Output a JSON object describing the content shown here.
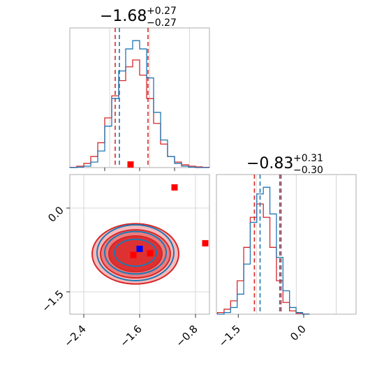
{
  "chart_data": [
    {
      "type": "histogram",
      "panel": "top-left",
      "title": {
        "main": "−1.68",
        "sup": "+0.27",
        "sub": "−0.27"
      },
      "xlim": [
        -2.6,
        -0.6
      ],
      "grid": true,
      "series": [
        {
          "name": "",
          "color": "#d62728",
          "quantiles": [
            -1.95,
            -1.48
          ],
          "centers": [
            -2.55,
            -2.45,
            -2.35,
            -2.25,
            -2.15,
            -2.05,
            -1.95,
            -1.85,
            -1.75,
            -1.65,
            -1.55,
            -1.45,
            -1.35,
            -1.25,
            -1.15,
            -1.05,
            -0.95,
            -0.85,
            -0.75,
            -0.65
          ],
          "counts": [
            0.2,
            1,
            3,
            8,
            18,
            36,
            52,
            63,
            73,
            78,
            67,
            50,
            32,
            17,
            8,
            4,
            2,
            1,
            0.5,
            0.2
          ]
        },
        {
          "name": "",
          "color": "#1f77b4",
          "quantiles": [
            -1.89
          ],
          "centers": [
            -2.55,
            -2.45,
            -2.35,
            -2.25,
            -2.15,
            -2.05,
            -1.95,
            -1.85,
            -1.75,
            -1.65,
            -1.55,
            -1.45,
            -1.35,
            -1.25,
            -1.15,
            -1.05,
            -0.95,
            -0.85,
            -0.75,
            -0.65
          ],
          "counts": [
            0,
            0.3,
            1,
            4,
            12,
            30,
            50,
            70,
            86,
            92,
            86,
            65,
            40,
            20,
            8,
            3,
            1,
            0.3,
            0,
            0
          ]
        }
      ]
    },
    {
      "type": "histogram",
      "panel": "bottom-right",
      "title": {
        "main": "−0.83",
        "sup": "+0.31",
        "sub": "−0.30"
      },
      "xlim": [
        -2.0,
        1.2
      ],
      "grid": true,
      "xticks": [
        "−1.5",
        "0.0"
      ],
      "series": [
        {
          "name": "",
          "color": "#d62728",
          "quantiles": [
            -1.13,
            -0.52
          ],
          "centers": [
            -1.9,
            -1.75,
            -1.6,
            -1.45,
            -1.3,
            -1.15,
            -1.0,
            -0.85,
            -0.7,
            -0.55,
            -0.4,
            -0.25,
            -0.1,
            0.05
          ],
          "counts": [
            1,
            3,
            8,
            20,
            40,
            58,
            66,
            58,
            40,
            20,
            7,
            2,
            0.5,
            0.1
          ]
        },
        {
          "name": "",
          "color": "#1f77b4",
          "quantiles": [
            -1.0,
            -0.55
          ],
          "centers": [
            -1.9,
            -1.75,
            -1.6,
            -1.45,
            -1.3,
            -1.15,
            -1.0,
            -0.85,
            -0.7,
            -0.55,
            -0.4,
            -0.25,
            -0.1,
            0.05
          ],
          "counts": [
            0,
            1,
            4,
            12,
            30,
            55,
            72,
            76,
            60,
            34,
            14,
            4,
            1,
            0
          ]
        }
      ]
    },
    {
      "type": "scatter",
      "panel": "bottom-left",
      "xlim": [
        -2.6,
        -0.6
      ],
      "ylim": [
        -1.9,
        0.6
      ],
      "grid": true,
      "xticks": [
        "−2.4",
        "−1.6",
        "−0.8"
      ],
      "yticks": [
        "0.0",
        "−1.5"
      ],
      "contours": [
        {
          "color": "#d62728",
          "center": [
            -1.66,
            -0.82
          ],
          "radii": [
            [
              0.62,
              0.54
            ],
            [
              0.5,
              0.43
            ],
            [
              0.38,
              0.32
            ]
          ]
        },
        {
          "color": "#1f77b4",
          "center": [
            -1.66,
            -0.8
          ],
          "radii": [
            [
              0.55,
              0.5
            ],
            [
              0.44,
              0.38
            ],
            [
              0.3,
              0.24
            ]
          ]
        }
      ],
      "markers": [
        {
          "color": "#ff0000",
          "points": [
            [
              -1.73,
              0.78
            ],
            [
              -1.1,
              0.37
            ],
            [
              -0.66,
              -0.63
            ],
            [
              -1.69,
              -0.84
            ],
            [
              -1.45,
              -0.81
            ]
          ]
        },
        {
          "color": "#0000ff",
          "points": [
            [
              -1.6,
              -0.73
            ]
          ]
        }
      ]
    }
  ]
}
